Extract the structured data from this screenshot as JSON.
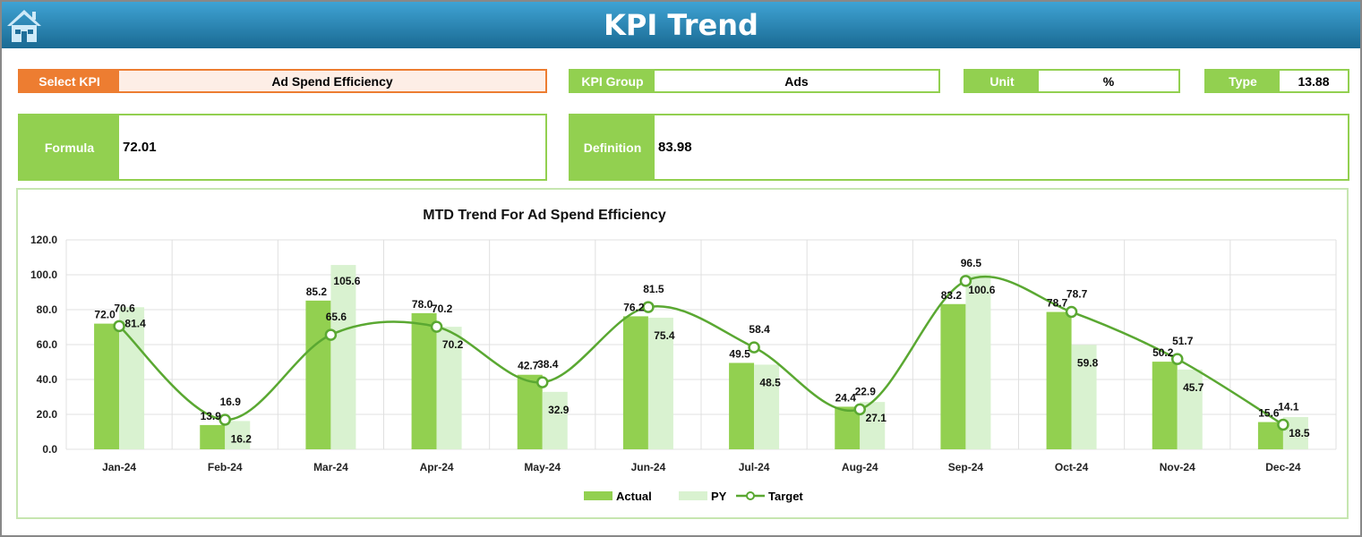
{
  "header": {
    "title": "KPI Trend",
    "home_icon": "home-icon"
  },
  "fields": {
    "select_kpi": {
      "label": "Select KPI",
      "value": "Ad Spend Efficiency"
    },
    "kpi_group": {
      "label": "KPI Group",
      "value": "Ads"
    },
    "unit": {
      "label": "Unit",
      "value": "%"
    },
    "type": {
      "label": "Type",
      "value": "13.88"
    },
    "formula": {
      "label": "Formula",
      "value": "72.01"
    },
    "definition": {
      "label": "Definition",
      "value": "83.98"
    }
  },
  "colors": {
    "actual": "#92d050",
    "py": "#d9f2d0",
    "target": "#5aa832",
    "accent_orange": "#ed7d31",
    "header_blue": "#1f7bab"
  },
  "chart_data": {
    "type": "bar",
    "title": "MTD Trend For Ad Spend Efficiency",
    "categories": [
      "Jan-24",
      "Feb-24",
      "Mar-24",
      "Apr-24",
      "May-24",
      "Jun-24",
      "Jul-24",
      "Aug-24",
      "Sep-24",
      "Oct-24",
      "Nov-24",
      "Dec-24"
    ],
    "series": [
      {
        "name": "Actual",
        "type": "bar",
        "values": [
          72.0,
          13.9,
          85.2,
          78.0,
          42.7,
          76.2,
          49.5,
          24.4,
          83.2,
          78.7,
          50.2,
          15.6
        ]
      },
      {
        "name": "PY",
        "type": "bar",
        "values": [
          81.4,
          16.2,
          105.6,
          70.2,
          32.9,
          75.4,
          48.5,
          27.1,
          100.6,
          59.8,
          45.7,
          18.5
        ]
      },
      {
        "name": "Target",
        "type": "line",
        "smooth": true,
        "values": [
          70.6,
          16.9,
          65.6,
          70.2,
          38.4,
          81.5,
          58.4,
          22.9,
          96.5,
          78.7,
          51.7,
          14.1
        ]
      }
    ],
    "ylim": [
      0,
      120
    ],
    "yticks": [
      "0.0",
      "20.0",
      "40.0",
      "60.0",
      "80.0",
      "100.0",
      "120.0"
    ],
    "grid": true,
    "legend": "bottom"
  }
}
